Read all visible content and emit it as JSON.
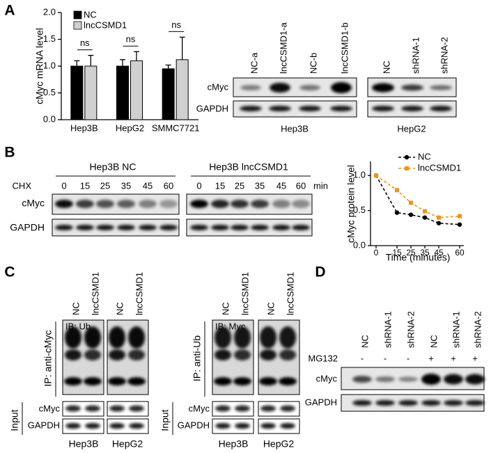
{
  "panel_labels": [
    "A",
    "B",
    "C",
    "D"
  ],
  "chart_data": [
    {
      "type": "bar",
      "y_label": "cMyc mRNA level",
      "categories": [
        "Hep3B",
        "HepG2",
        "SMMC7721"
      ],
      "series": [
        {
          "name": "NC",
          "color": "#000000",
          "values": [
            1.0,
            1.0,
            0.95
          ],
          "errors": [
            0.1,
            0.12,
            0.07
          ]
        },
        {
          "name": "lncCSMD1",
          "color": "#d0d0d0",
          "values": [
            1.0,
            1.1,
            1.12
          ],
          "errors": [
            0.2,
            0.17,
            0.42
          ]
        }
      ],
      "annotations": [
        "ns",
        "ns",
        "ns"
      ],
      "ylim": [
        0,
        2.0
      ],
      "yticks": [
        {
          "value": 0,
          "label": "0.0"
        },
        0.5,
        {
          "value": 1,
          "label": "1.0"
        },
        1.5,
        {
          "value": 2,
          "label": "2.0"
        }
      ],
      "legend": "top-left"
    },
    {
      "type": "line",
      "y_label": "cMyc protein level",
      "x_label": "Time (minutes)",
      "x": [
        0,
        15,
        25,
        35,
        45,
        60
      ],
      "series": [
        {
          "name": "NC",
          "color": "#000000",
          "marker": "circle",
          "values": [
            1.0,
            0.47,
            0.44,
            0.4,
            0.32,
            0.3
          ]
        },
        {
          "name": "lncCSMD1",
          "color": "#e8961e",
          "marker": "square",
          "values": [
            1.0,
            0.79,
            0.61,
            0.49,
            0.4,
            0.42
          ]
        }
      ],
      "linestyle": "dashed",
      "xlim": [
        0,
        60
      ],
      "xticks": [
        0,
        15,
        25,
        35,
        45,
        60
      ],
      "ylim": [
        0,
        1.2
      ],
      "yticks": [
        {
          "value": 0,
          "label": "0.0"
        },
        0.5,
        {
          "value": 1,
          "label": "1.0"
        }
      ],
      "legend": "top-right"
    }
  ],
  "panel_a_blot": {
    "lanes_hep3b": [
      "NC-a",
      "lncCSMD1-a",
      "NC-b",
      "lncCSMD1-b"
    ],
    "lanes_hepg2": [
      "NC",
      "shRNA-1",
      "shRNA-2"
    ],
    "rows": [
      "cMyc",
      "GAPDH"
    ],
    "cells": [
      "Hep3B",
      "HepG2"
    ]
  },
  "panel_b_blot": {
    "groups": [
      "Hep3B NC",
      "Hep3B lncCSMD1"
    ],
    "treatment": "CHX",
    "times": [
      "0",
      "15",
      "25",
      "35",
      "45",
      "60"
    ],
    "unit": "min",
    "rows": [
      "cMyc",
      "GAPDH"
    ]
  },
  "panel_c_blot": {
    "lanes": [
      "NC",
      "lncCSMD1"
    ],
    "left_ip": "IP: anti-cMyc",
    "left_ib": "IB: Ub",
    "right_ip": "IP: anti-Ub",
    "right_ib": "IB: Myc",
    "rows": [
      "cMyc",
      "GAPDH"
    ],
    "input": "Input",
    "cells": [
      "Hep3B",
      "HepG2"
    ]
  },
  "panel_d_blot": {
    "lanes": [
      "NC",
      "shRNA-1",
      "shRNA-2",
      "NC",
      "shRNA-1",
      "shRNA-2"
    ],
    "treatment": "MG132",
    "signs": [
      "-",
      "-",
      "-",
      "+",
      "+",
      "+"
    ],
    "rows": [
      "cMyc",
      "GAPDH"
    ]
  }
}
